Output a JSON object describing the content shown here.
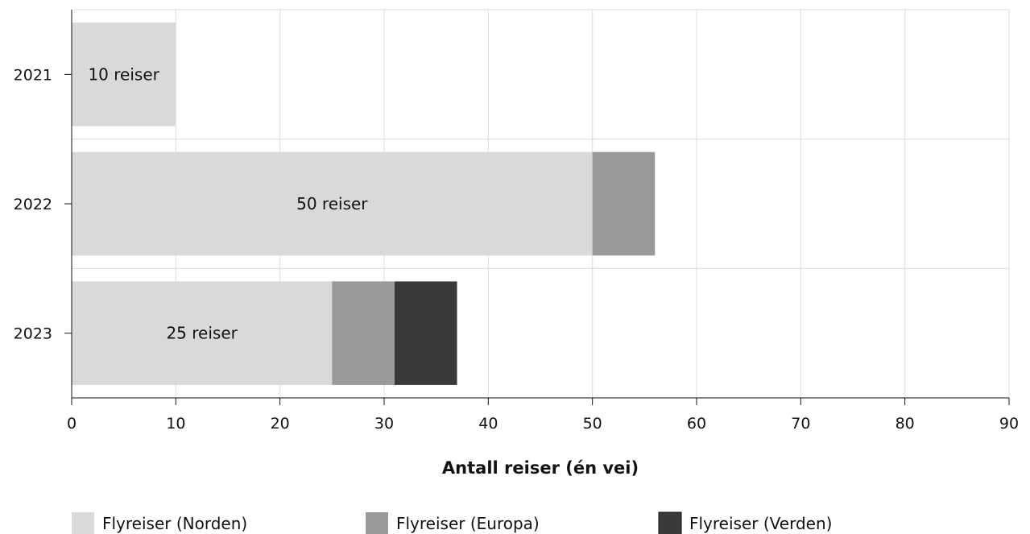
{
  "chart_data": {
    "type": "bar",
    "orientation": "horizontal",
    "stacked": true,
    "categories": [
      "2021",
      "2022",
      "2023"
    ],
    "series": [
      {
        "name": "Flyreiser (Norden)",
        "values": [
          10,
          50,
          25
        ],
        "color": "#d9d9d9"
      },
      {
        "name": "Flyreiser (Europa)",
        "values": [
          0,
          6,
          6
        ],
        "color": "#999999"
      },
      {
        "name": "Flyreiser (Verden)",
        "values": [
          0,
          0,
          6
        ],
        "color": "#3a3a3a"
      }
    ],
    "data_labels": [
      "10 reiser",
      "50 reiser",
      "25 reiser"
    ],
    "xlabel": "Antall reiser (én vei)",
    "ylabel": "",
    "xlim": [
      0,
      90
    ],
    "xticks": [
      "0",
      "10",
      "20",
      "30",
      "40",
      "50",
      "60",
      "70",
      "80",
      "90"
    ],
    "grid": true,
    "legend_position": "bottom"
  }
}
